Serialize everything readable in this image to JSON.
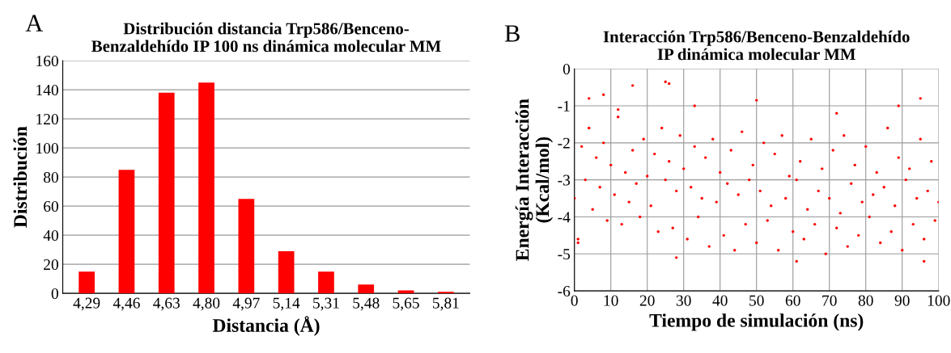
{
  "chart_data": [
    {
      "type": "bar",
      "title": "Distribución distancia Trp586/Benceno-\nBenzaldehído IP 100 ns dinámica molecular MM",
      "xlabel": "Distancia (Å)",
      "ylabel": "Distribución",
      "categories": [
        "4,29",
        "4,46",
        "4,63",
        "4,80",
        "4,97",
        "5,14",
        "5,31",
        "5,48",
        "5,65",
        "5,81"
      ],
      "values": [
        15,
        85,
        138,
        145,
        65,
        29,
        15,
        6,
        2,
        1
      ],
      "color": "#ff0000",
      "ylim": [
        0,
        160
      ],
      "yticks": [
        0,
        20,
        40,
        60,
        80,
        100,
        120,
        140,
        160
      ],
      "grid": "y",
      "annotations": [
        "A"
      ]
    },
    {
      "type": "scatter",
      "title": "Interacción Trp586/Benceno-Benzaldehído\nIP dinámica molecular MM",
      "xlabel": "Tiempo de simulación (ns)",
      "ylabel": "Energía Interacción\n(Kcal/mol)",
      "color": "#ff0000",
      "marker": "circle",
      "grid": true,
      "xlim": [
        0,
        100
      ],
      "xticks": [
        0,
        10,
        20,
        30,
        40,
        50,
        60,
        70,
        80,
        90,
        100
      ],
      "ylim": [
        -6,
        0
      ],
      "yticks": [
        -6,
        -5,
        -4,
        -3,
        -2,
        -1,
        0
      ],
      "annotations": [
        "B"
      ],
      "x": [
        0,
        1,
        2,
        3,
        4,
        5,
        6,
        7,
        8,
        9,
        10,
        11,
        12,
        13,
        14,
        15,
        16,
        17,
        18,
        19,
        20,
        21,
        22,
        23,
        24,
        25,
        26,
        27,
        28,
        29,
        30,
        31,
        32,
        33,
        34,
        35,
        36,
        37,
        38,
        39,
        40,
        41,
        42,
        43,
        44,
        45,
        46,
        47,
        48,
        49,
        50,
        51,
        52,
        53,
        54,
        55,
        56,
        57,
        58,
        59,
        60,
        61,
        62,
        63,
        64,
        65,
        66,
        67,
        68,
        69,
        70,
        71,
        72,
        73,
        74,
        75,
        76,
        77,
        78,
        79,
        80,
        81,
        82,
        83,
        84,
        85,
        86,
        87,
        88,
        89,
        90,
        91,
        92,
        93,
        94,
        95,
        96,
        97,
        98,
        99,
        100,
        16,
        25,
        26,
        50,
        95,
        89,
        4,
        8,
        28,
        61,
        96,
        1,
        12,
        72,
        33
      ],
      "values": [
        -3.5,
        -4.6,
        -2.1,
        -3.0,
        -1.6,
        -3.8,
        -2.4,
        -3.2,
        -2.0,
        -4.1,
        -2.6,
        -3.4,
        -1.3,
        -4.2,
        -2.8,
        -3.6,
        -2.2,
        -3.1,
        -4.0,
        -1.9,
        -2.9,
        -3.7,
        -2.3,
        -4.4,
        -1.6,
        -3.0,
        -2.5,
        -4.3,
        -3.3,
        -1.8,
        -2.7,
        -4.6,
        -3.2,
        -2.1,
        -4.0,
        -3.5,
        -2.4,
        -4.8,
        -1.9,
        -3.6,
        -2.8,
        -4.5,
        -3.1,
        -2.2,
        -4.9,
        -3.4,
        -1.7,
        -4.2,
        -3.0,
        -2.6,
        -4.7,
        -3.3,
        -2.0,
        -4.1,
        -3.7,
        -2.3,
        -4.9,
        -1.8,
        -3.5,
        -2.9,
        -4.4,
        -3.0,
        -2.5,
        -4.6,
        -3.8,
        -1.9,
        -4.2,
        -3.3,
        -2.7,
        -5.0,
        -3.5,
        -2.2,
        -4.3,
        -3.9,
        -1.8,
        -4.8,
        -3.1,
        -2.6,
        -4.5,
        -3.6,
        -2.1,
        -4.0,
        -3.4,
        -2.8,
        -4.7,
        -3.2,
        -1.6,
        -4.4,
        -3.7,
        -2.4,
        -4.9,
        -3.0,
        -2.7,
        -4.2,
        -3.5,
        -1.9,
        -4.6,
        -3.3,
        -2.5,
        -4.1,
        -3.6,
        -0.45,
        -0.35,
        -0.4,
        -0.85,
        -0.8,
        -1.0,
        -0.8,
        -0.7,
        -5.1,
        -5.2,
        -5.2,
        -4.7,
        -1.1,
        -1.2,
        -1.0
      ]
    }
  ]
}
